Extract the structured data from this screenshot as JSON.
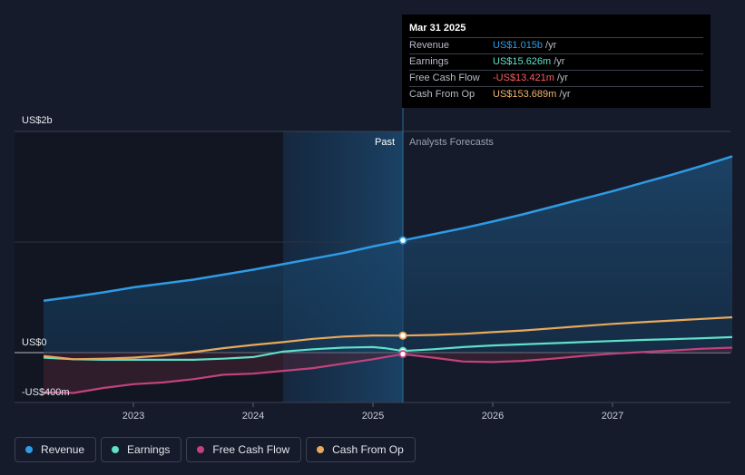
{
  "tooltip": {
    "date": "Mar 31 2025",
    "rows": [
      {
        "name": "Revenue",
        "value": "US$1.015b",
        "unit": "/yr",
        "color": "#2f9be4"
      },
      {
        "name": "Earnings",
        "value": "US$15.626m",
        "unit": "/yr",
        "color": "#5fe0c8"
      },
      {
        "name": "Free Cash Flow",
        "value": "-US$13.421m",
        "unit": "/yr",
        "color": "#ff5a5f"
      },
      {
        "name": "Cash From Op",
        "value": "US$153.689m",
        "unit": "/yr",
        "color": "#f2b46a"
      }
    ]
  },
  "legend": [
    {
      "label": "Revenue",
      "color": "#2f9be4"
    },
    {
      "label": "Earnings",
      "color": "#5fe0c8"
    },
    {
      "label": "Free Cash Flow",
      "color": "#c2437c"
    },
    {
      "label": "Cash From Op",
      "color": "#e8a95c"
    }
  ],
  "chart_data": {
    "type": "line",
    "title": "",
    "y_unit": "US$ millions",
    "ylim": [
      -400,
      2000
    ],
    "y_tick_labels": [
      {
        "label": "US$2b",
        "value": 2000
      },
      {
        "label": "US$0",
        "value": 0
      },
      {
        "label": "-US$400m",
        "value": -400
      }
    ],
    "xlim": [
      2022.25,
      2028.0
    ],
    "x_ticks": [
      2023,
      2024,
      2025,
      2026,
      2027
    ],
    "x_tick_labels": [
      "2023",
      "2024",
      "2025",
      "2026",
      "2027"
    ],
    "region_labels": {
      "past": "Past",
      "forecast": "Analysts Forecasts"
    },
    "forecast_start": 2025.25,
    "highlight_band": [
      2024.25,
      2025.25
    ],
    "series": [
      {
        "name": "Revenue",
        "color": "#2f9be4",
        "fill": true,
        "x": [
          2022.25,
          2022.5,
          2022.75,
          2023.0,
          2023.25,
          2023.5,
          2023.75,
          2024.0,
          2024.25,
          2024.5,
          2024.75,
          2025.0,
          2025.25,
          2025.5,
          2025.75,
          2026.0,
          2026.25,
          2026.5,
          2026.75,
          2027.0,
          2027.25,
          2027.5,
          2027.75,
          2028.0
        ],
        "values": [
          470,
          505,
          545,
          590,
          625,
          660,
          705,
          750,
          800,
          850,
          900,
          960,
          1015,
          1070,
          1125,
          1185,
          1250,
          1320,
          1390,
          1460,
          1535,
          1610,
          1690,
          1775
        ]
      },
      {
        "name": "Earnings",
        "color": "#5fe0c8",
        "fill": false,
        "x": [
          2022.25,
          2022.5,
          2022.75,
          2023.0,
          2023.25,
          2023.5,
          2023.75,
          2024.0,
          2024.25,
          2024.5,
          2024.75,
          2025.0,
          2025.1,
          2025.25,
          2025.5,
          2025.75,
          2026.0,
          2026.25,
          2026.5,
          2026.75,
          2027.0,
          2027.25,
          2027.5,
          2027.75,
          2028.0
        ],
        "values": [
          -45,
          -60,
          -65,
          -65,
          -65,
          -65,
          -55,
          -40,
          10,
          30,
          45,
          50,
          40,
          15,
          30,
          50,
          65,
          75,
          85,
          95,
          105,
          115,
          122,
          130,
          140
        ]
      },
      {
        "name": "Free Cash Flow",
        "color": "#c2437c",
        "fill": true,
        "x": [
          2022.25,
          2022.5,
          2022.75,
          2023.0,
          2023.25,
          2023.5,
          2023.75,
          2024.0,
          2024.25,
          2024.5,
          2024.75,
          2025.0,
          2025.25,
          2025.5,
          2025.75,
          2026.0,
          2026.25,
          2026.5,
          2026.75,
          2027.0,
          2027.25,
          2027.5,
          2027.75,
          2028.0
        ],
        "values": [
          -360,
          -365,
          -320,
          -285,
          -270,
          -240,
          -200,
          -190,
          -165,
          -140,
          -100,
          -60,
          -13,
          -45,
          -80,
          -85,
          -75,
          -55,
          -30,
          -10,
          5,
          20,
          35,
          45
        ]
      },
      {
        "name": "Cash From Op",
        "color": "#e8a95c",
        "fill": false,
        "x": [
          2022.25,
          2022.5,
          2022.75,
          2023.0,
          2023.25,
          2023.5,
          2023.75,
          2024.0,
          2024.25,
          2024.5,
          2024.75,
          2025.0,
          2025.25,
          2025.5,
          2025.75,
          2026.0,
          2026.25,
          2026.5,
          2026.75,
          2027.0,
          2027.25,
          2027.5,
          2027.75,
          2028.0
        ],
        "values": [
          -30,
          -60,
          -55,
          -45,
          -25,
          5,
          40,
          70,
          95,
          125,
          145,
          155,
          154,
          160,
          170,
          185,
          200,
          220,
          240,
          260,
          275,
          290,
          305,
          320
        ]
      }
    ]
  }
}
